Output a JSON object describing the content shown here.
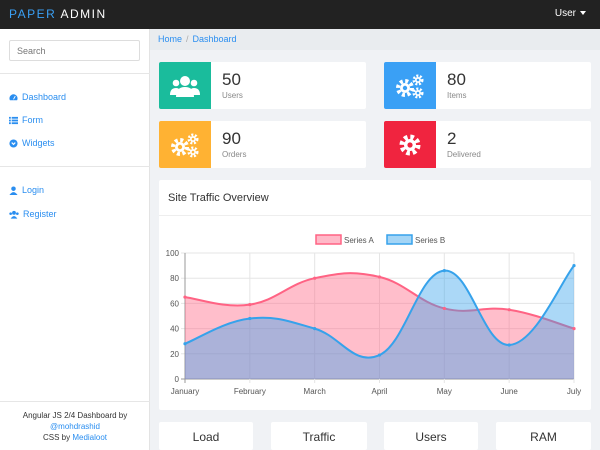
{
  "brand": {
    "part1": "PAPER",
    "part2": "ADMIN"
  },
  "user_menu": {
    "label": "User"
  },
  "sidebar": {
    "search_placeholder": "Search",
    "items": [
      {
        "label": "Dashboard",
        "icon": "dashboard-icon"
      },
      {
        "label": "Form",
        "icon": "list-icon"
      },
      {
        "label": "Widgets",
        "icon": "chevron-circle-icon"
      },
      {
        "label": "Login",
        "icon": "user-icon"
      },
      {
        "label": "Register",
        "icon": "users-icon"
      }
    ],
    "footer": {
      "line1": "Angular JS 2/4 Dashboard by",
      "author": "@mohdrashid",
      "css_prefix": "CSS by",
      "css_link": "Medialoot"
    }
  },
  "breadcrumb": {
    "home": "Home",
    "current": "Dashboard"
  },
  "stats": [
    {
      "value": "50",
      "label": "Users",
      "color": "#1abc9c",
      "icon": "users-icon"
    },
    {
      "value": "80",
      "label": "Items",
      "color": "#3aa0f5",
      "icon": "gears-icon"
    },
    {
      "value": "90",
      "label": "Orders",
      "color": "#ffb233",
      "icon": "gears-icon"
    },
    {
      "value": "2",
      "label": "Delivered",
      "color": "#f0243f",
      "icon": "gear-icon"
    }
  ],
  "chart": {
    "title": "Site Traffic Overview"
  },
  "chart_data": {
    "type": "area",
    "categories": [
      "January",
      "February",
      "March",
      "April",
      "May",
      "June",
      "July"
    ],
    "series": [
      {
        "name": "Series A",
        "values": [
          65,
          59,
          80,
          81,
          56,
          55,
          40
        ],
        "color": "#ff6384"
      },
      {
        "name": "Series B",
        "values": [
          28,
          48,
          40,
          19,
          86,
          27,
          90
        ],
        "color": "#36a2eb"
      }
    ],
    "ylim": [
      0,
      100
    ],
    "yticks": [
      0,
      20,
      40,
      60,
      80,
      100
    ],
    "grid": true,
    "legend": "top-center"
  },
  "tiles": [
    "Load",
    "Traffic",
    "Users",
    "RAM"
  ]
}
